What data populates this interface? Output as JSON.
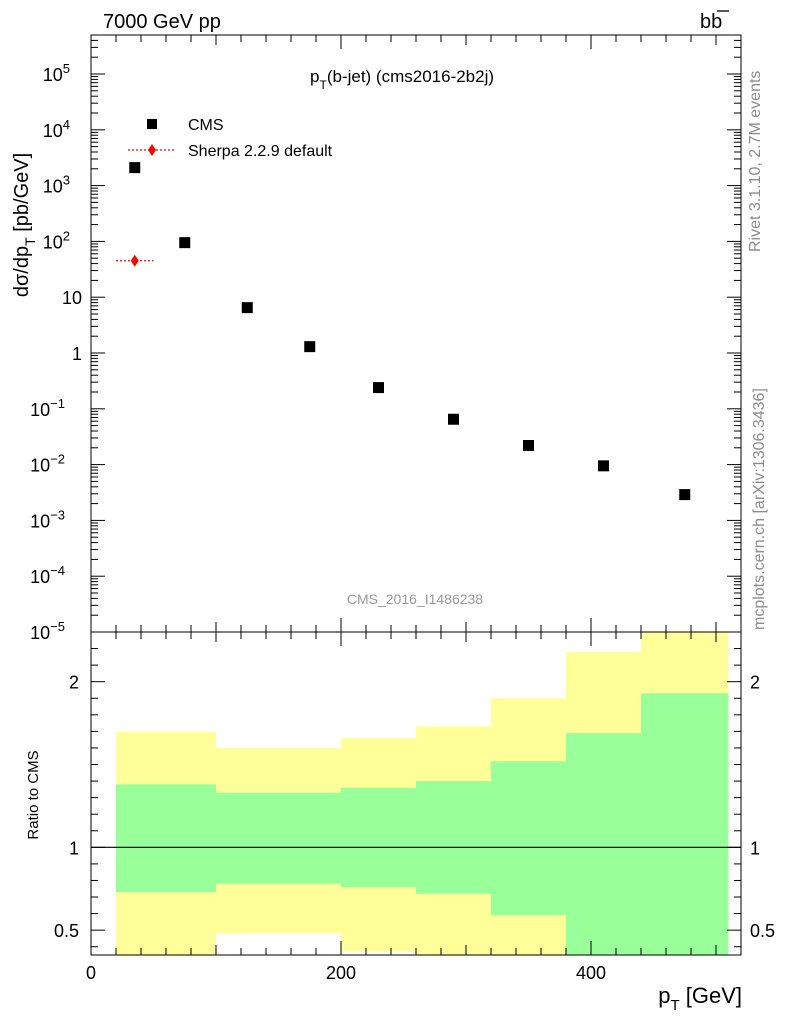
{
  "header": {
    "left": "7000 GeV pp",
    "right_base": "b",
    "right_bar": "b"
  },
  "side_labels": {
    "rivet": "Rivet 3.1.10,  2.7M events",
    "mcplots": "mcplots.cern.ch [arXiv:1306.3436]"
  },
  "chart_data": [
    {
      "type": "scatter",
      "title": "p_T(b-jet) (cms2016-2b2j)",
      "title_main": "p",
      "title_sub": "T",
      "title_rest": "(b-jet) (cms2016-2b2j)",
      "watermark": "CMS_2016_I1486238",
      "ylabel_main": "dσ/dp",
      "ylabel_sub": "T",
      "ylabel_rest": " [pb/GeV]",
      "yscale": "log",
      "ylim": [
        1e-05,
        500000
      ],
      "xlim": [
        0,
        520
      ],
      "y_ticks": [
        {
          "value": 100000,
          "base": "10",
          "exp": "5"
        },
        {
          "value": 10000,
          "base": "10",
          "exp": "4"
        },
        {
          "value": 1000,
          "base": "10",
          "exp": "3"
        },
        {
          "value": 100,
          "base": "10",
          "exp": "2"
        },
        {
          "value": 10,
          "base": "10",
          "exp": ""
        },
        {
          "value": 1,
          "base": "1",
          "exp": ""
        },
        {
          "value": 0.1,
          "base": "10",
          "exp": "−1"
        },
        {
          "value": 0.01,
          "base": "10",
          "exp": "−2"
        },
        {
          "value": 0.001,
          "base": "10",
          "exp": "−3"
        },
        {
          "value": 0.0001,
          "base": "10",
          "exp": "−4"
        },
        {
          "value": 1e-05,
          "base": "10",
          "exp": "−5"
        }
      ],
      "legend": {
        "placement": "top-left",
        "entries": [
          "CMS",
          "Sherpa 2.2.9 default"
        ]
      },
      "series": [
        {
          "name": "CMS",
          "color": "#000000",
          "marker": "square",
          "x": [
            35,
            75,
            125,
            175,
            230,
            290,
            350,
            410,
            475
          ],
          "y": [
            2100,
            95,
            6.5,
            1.3,
            0.24,
            0.065,
            0.022,
            0.0095,
            0.0029
          ]
        },
        {
          "name": "Sherpa 2.2.9 default",
          "color": "#ff0000",
          "marker": "diamond",
          "x": [
            35
          ],
          "y": [
            45
          ],
          "x_low": [
            20
          ],
          "x_high": [
            50
          ]
        }
      ]
    },
    {
      "type": "area",
      "ylabel": "Ratio to CMS",
      "ylim": [
        0.35,
        2.3
      ],
      "xlim": [
        0,
        520
      ],
      "y_ticks": [
        {
          "value": 2,
          "label": "2"
        },
        {
          "value": 1,
          "label": "1"
        },
        {
          "value": 0.5,
          "label": "0.5"
        }
      ],
      "x_ticks": [
        {
          "value": 0,
          "label": "0"
        },
        {
          "value": 200,
          "label": "200"
        },
        {
          "value": 400,
          "label": "400"
        }
      ],
      "xlabel_main": "p",
      "xlabel_sub": "T",
      "xlabel_rest": " [GeV]",
      "reference_line": 1,
      "colors": {
        "outer": "#ffff99",
        "inner": "#99ff99"
      },
      "bins": [
        {
          "lo": 20,
          "hi": 100,
          "outer": [
            0.35,
            1.7
          ],
          "inner": [
            0.73,
            1.38
          ]
        },
        {
          "lo": 100,
          "hi": 200,
          "outer": [
            0.48,
            1.6
          ],
          "inner": [
            0.78,
            1.33
          ]
        },
        {
          "lo": 200,
          "hi": 260,
          "outer": [
            0.37,
            1.66
          ],
          "inner": [
            0.76,
            1.36
          ]
        },
        {
          "lo": 260,
          "hi": 320,
          "outer": [
            0.35,
            1.73
          ],
          "inner": [
            0.72,
            1.4
          ]
        },
        {
          "lo": 320,
          "hi": 380,
          "outer": [
            0.35,
            1.9
          ],
          "inner": [
            0.59,
            1.52
          ]
        },
        {
          "lo": 380,
          "hi": 440,
          "outer": [
            0.35,
            2.18
          ],
          "inner": [
            0.35,
            1.69
          ]
        },
        {
          "lo": 440,
          "hi": 510,
          "outer": [
            0.35,
            2.3
          ],
          "inner": [
            0.35,
            1.93
          ]
        }
      ]
    }
  ]
}
